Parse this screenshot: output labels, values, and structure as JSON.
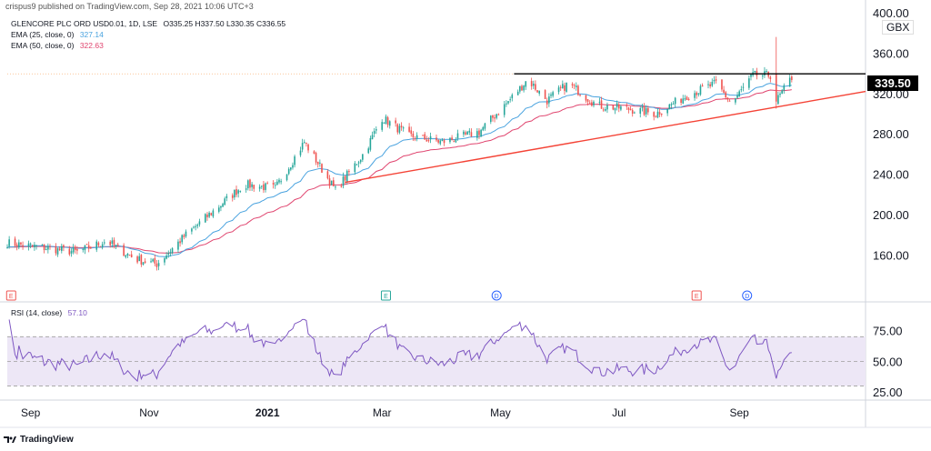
{
  "header": {
    "publish_text": "crispus9 published on TradingView.com, Sep 28, 2021 10:06 UTC+3"
  },
  "legend": {
    "symbol_line": "GLENCORE PLC ORD USD0.01, 1D, LSE",
    "ohlc": "O335.25 H337.50 L330.35 C336.55",
    "ema25_label": "EMA (25, close, 0)",
    "ema25_value": "327.14",
    "ema50_label": "EMA (50, close, 0)",
    "ema50_value": "322.63",
    "rsi_label": "RSI (14, close)",
    "rsi_value": "57.10"
  },
  "currency_label": "GBX",
  "last_price_label": "339.50",
  "brand": {
    "name": "TradingView"
  },
  "colors": {
    "up": "#26a69a",
    "down": "#ef5350",
    "ema25": "#4aa3df",
    "ema50": "#e0456f",
    "rsi_line": "#7e57c2",
    "rsi_band": "#ede7f6",
    "trendline": "#f44336",
    "resistance": "#000000"
  },
  "chart_data": [
    {
      "type": "candlestick",
      "title": "GLENCORE PLC ORD USD0.01, 1D, LSE",
      "x_tick_labels": [
        "Sep",
        "Nov",
        "2021",
        "Mar",
        "May",
        "Jul",
        "Sep"
      ],
      "y_tick_labels": [
        "160.00",
        "200.00",
        "240.00",
        "280.00",
        "320.00",
        "360.00",
        "400.00"
      ],
      "ylim": [
        128,
        400
      ],
      "x_start": "2020-08-20",
      "x_end": "2021-11-05",
      "last_price": 339.5,
      "anchors": [
        [
          "2020-08-20",
          172
        ],
        [
          "2020-09-05",
          168
        ],
        [
          "2020-09-25",
          163
        ],
        [
          "2020-10-10",
          174
        ],
        [
          "2020-10-25",
          156
        ],
        [
          "2020-11-05",
          151
        ],
        [
          "2020-11-20",
          180
        ],
        [
          "2020-12-05",
          205
        ],
        [
          "2020-12-20",
          230
        ],
        [
          "2021-01-05",
          226
        ],
        [
          "2021-01-20",
          272
        ],
        [
          "2021-02-05",
          224
        ],
        [
          "2021-02-20",
          262
        ],
        [
          "2021-03-01",
          296
        ],
        [
          "2021-03-15",
          278
        ],
        [
          "2021-04-01",
          272
        ],
        [
          "2021-04-20",
          282
        ],
        [
          "2021-05-05",
          312
        ],
        [
          "2021-05-15",
          334
        ],
        [
          "2021-05-25",
          313
        ],
        [
          "2021-06-05",
          330
        ],
        [
          "2021-06-20",
          308
        ],
        [
          "2021-07-05",
          305
        ],
        [
          "2021-07-20",
          300
        ],
        [
          "2021-08-05",
          318
        ],
        [
          "2021-08-20",
          330
        ],
        [
          "2021-08-28",
          310
        ],
        [
          "2021-09-08",
          338
        ],
        [
          "2021-09-17",
          338
        ],
        [
          "2021-09-20",
          312
        ],
        [
          "2021-09-28",
          336
        ]
      ],
      "events": [
        {
          "label": "E",
          "date": "2020-08-22",
          "color": "#ef5350"
        },
        {
          "label": "E",
          "date": "2021-03-03",
          "color": "#26a69a"
        },
        {
          "label": "D",
          "date": "2021-04-29",
          "color": "#2962ff"
        },
        {
          "label": "E",
          "date": "2021-08-10",
          "color": "#ef5350"
        },
        {
          "label": "D",
          "date": "2021-09-05",
          "color": "#2962ff"
        }
      ],
      "resistance": {
        "from": "2021-05-08",
        "to": "2021-11-05",
        "value": 339.5
      },
      "trendline": [
        [
          "2021-02-10",
          232
        ],
        [
          "2021-11-05",
          322
        ]
      ],
      "spike": {
        "date": "2021-09-20",
        "high": 376
      }
    },
    {
      "type": "line",
      "title": "RSI (14, close)",
      "y_tick_labels": [
        "25.00",
        "50.00",
        "75.00"
      ],
      "ylim": [
        20,
        85
      ],
      "band": [
        30,
        70
      ],
      "midline": 50,
      "last_value": 57.1
    }
  ]
}
